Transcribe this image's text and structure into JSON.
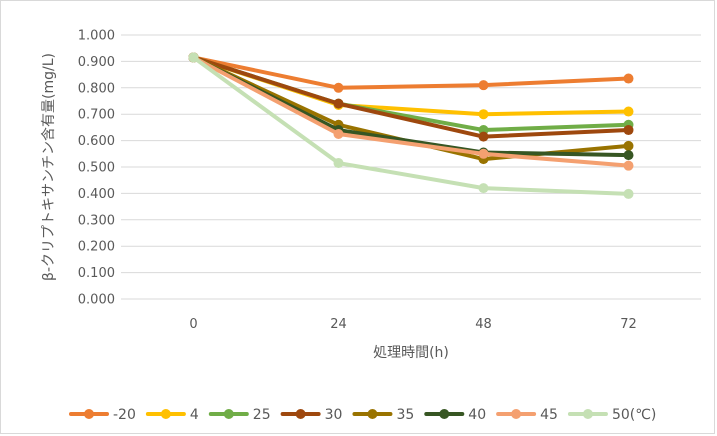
{
  "chart_data": {
    "type": "line",
    "title": "",
    "xlabel": "処理時間(h)",
    "ylabel": "β-クリプトキサンチン含有量(mg/L)",
    "categories": [
      "0",
      "24",
      "48",
      "72"
    ],
    "ylim": [
      0,
      1.0
    ],
    "ytick_step": 0.1,
    "ytick_labels": [
      "0.000",
      "0.100",
      "0.200",
      "0.300",
      "0.400",
      "0.500",
      "0.600",
      "0.700",
      "0.800",
      "0.900",
      "1.000"
    ],
    "grid": true,
    "legend_position": "bottom",
    "series": [
      {
        "name": "-20",
        "color": "#ED7D31",
        "values": [
          0.915,
          0.8,
          0.81,
          0.835
        ]
      },
      {
        "name": "4",
        "color": "#FFC000",
        "values": [
          0.915,
          0.735,
          0.7,
          0.71
        ]
      },
      {
        "name": "25",
        "color": "#70AD47",
        "values": [
          0.915,
          0.74,
          0.64,
          0.66
        ]
      },
      {
        "name": "30",
        "color": "#9E480E",
        "values": [
          0.915,
          0.74,
          0.615,
          0.64
        ]
      },
      {
        "name": "35",
        "color": "#997300",
        "values": [
          0.915,
          0.66,
          0.53,
          0.58
        ]
      },
      {
        "name": "40",
        "color": "#375623",
        "values": [
          0.915,
          0.64,
          0.555,
          0.545
        ]
      },
      {
        "name": "45",
        "color": "#F4A070",
        "values": [
          0.915,
          0.625,
          0.55,
          0.505
        ]
      },
      {
        "name": "50(℃)",
        "color": "#C5E0B4",
        "values": [
          0.915,
          0.515,
          0.42,
          0.398
        ]
      }
    ]
  }
}
